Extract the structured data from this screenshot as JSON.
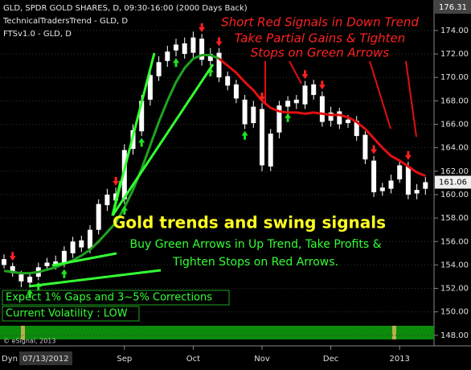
{
  "chart_data": {
    "type": "candlestick",
    "header": [
      "GLD, SPDR GOLD SHARES, D, 09:30-16:00 (2000 Days Back)",
      "TechnicalTradersTrend - GLD, D",
      "FTSv1.0 - GLD, D"
    ],
    "top_price": 176.31,
    "last_price": 161.06,
    "copyright": "© eSignal, 2013",
    "mode": "Dyn",
    "start_date": "07/13/2012",
    "annotations_red": [
      "Short Red Signals in Down Trend",
      "Take Partial Gains & Tighten",
      "Stops on Green Arrows"
    ],
    "headline": "Gold trends and swing signals",
    "annotations_green": [
      "Buy Green Arrows in Up Trend, Take Profits &",
      "Tighten Stops on Red  Arrows."
    ],
    "boxes": [
      "Expect 1% Gaps and 3~5% Corrections",
      "Current Volatility : LOW"
    ],
    "categories": [
      null,
      null,
      null,
      null,
      null,
      null,
      null,
      null,
      null,
      null,
      null,
      null,
      null,
      null,
      "Sep",
      null,
      null,
      null,
      null,
      null,
      null,
      null,
      "Oct",
      null,
      null,
      null,
      null,
      null,
      null,
      null,
      "Nov",
      null,
      null,
      null,
      null,
      null,
      null,
      null,
      "Dec",
      null,
      null,
      null,
      null,
      null,
      null,
      null,
      "2013",
      null,
      null,
      null
    ],
    "open": [
      154.5,
      153.9,
      153.2,
      152.5,
      153.0,
      153.9,
      154.3,
      154.1,
      155.0,
      156.1,
      155.4,
      157.0,
      159.1,
      160.1,
      159.6,
      163.9,
      165.4,
      168.1,
      170.1,
      171.4,
      172.3,
      172.9,
      172.1,
      173.3,
      171.4,
      172.1,
      170.1,
      169.4,
      168.1,
      166.1,
      167.3,
      162.4,
      165.3,
      167.5,
      168.1,
      167.7,
      169.4,
      168.4,
      166.3,
      167.1,
      166.1,
      166.3,
      165.1,
      162.9,
      160.3,
      160.5,
      161.3,
      162.4,
      160.1,
      160.5
    ],
    "high": [
      154.9,
      154.2,
      153.5,
      153.4,
      154.2,
      154.6,
      154.8,
      155.6,
      156.4,
      156.5,
      157.4,
      159.6,
      160.5,
      160.6,
      164.3,
      166.0,
      168.5,
      170.6,
      171.8,
      172.7,
      173.3,
      173.4,
      173.9,
      173.7,
      172.5,
      172.5,
      170.5,
      169.8,
      168.5,
      168.0,
      167.8,
      165.6,
      168.0,
      168.4,
      168.5,
      169.7,
      169.8,
      168.8,
      167.5,
      167.4,
      166.8,
      166.7,
      165.4,
      163.3,
      161.0,
      161.7,
      162.9,
      162.8,
      160.9,
      161.5
    ],
    "low": [
      153.7,
      153.0,
      152.1,
      152.1,
      152.7,
      153.5,
      153.6,
      153.8,
      154.6,
      155.1,
      155.0,
      156.6,
      158.6,
      159.0,
      159.2,
      163.4,
      165.0,
      167.6,
      169.7,
      170.9,
      171.8,
      171.6,
      171.7,
      171.0,
      171.0,
      169.6,
      168.9,
      167.8,
      165.6,
      165.7,
      162.0,
      162.0,
      164.8,
      167.1,
      167.3,
      167.3,
      168.1,
      165.8,
      165.8,
      165.6,
      165.7,
      164.6,
      162.6,
      159.8,
      159.9,
      160.1,
      161.0,
      159.6,
      159.6,
      160.0
    ],
    "close": [
      154.0,
      153.3,
      152.6,
      153.0,
      153.8,
      154.2,
      154.0,
      155.2,
      156.0,
      155.5,
      157.0,
      159.2,
      160.0,
      159.5,
      163.8,
      165.5,
      168.0,
      170.2,
      171.3,
      172.2,
      172.8,
      172.0,
      173.4,
      171.5,
      172.0,
      170.0,
      169.3,
      168.2,
      166.0,
      167.5,
      162.5,
      165.2,
      167.6,
      168.0,
      167.8,
      169.3,
      168.5,
      166.2,
      167.0,
      166.0,
      166.4,
      165.0,
      163.0,
      160.2,
      160.6,
      161.2,
      162.5,
      160.0,
      160.4,
      161.06
    ],
    "candle_color": "#ffffff",
    "trends": [
      {
        "color": "#1fa31f",
        "values": [
          153.5,
          153.4,
          153.3,
          153.3,
          153.4,
          153.6,
          153.8,
          154.1,
          154.4,
          154.8,
          155.3,
          156.0,
          156.8,
          157.6,
          158.9,
          160.4,
          162.2,
          164.2,
          166.2,
          168.0,
          169.6,
          170.8,
          171.6,
          171.9,
          171.9,
          171.6,
          null,
          null,
          null,
          null,
          null,
          null,
          null,
          null,
          null,
          null,
          null,
          null,
          null,
          null,
          null,
          null,
          null,
          null,
          null,
          null,
          null,
          null,
          null,
          null
        ]
      },
      {
        "color": "#e01010",
        "values": [
          null,
          null,
          null,
          null,
          null,
          null,
          null,
          null,
          null,
          null,
          null,
          null,
          null,
          null,
          null,
          null,
          null,
          null,
          null,
          null,
          null,
          null,
          null,
          null,
          null,
          171.6,
          171.0,
          170.4,
          169.6,
          168.9,
          168.0,
          167.4,
          167.1,
          167.0,
          167.0,
          166.9,
          167.0,
          166.9,
          166.8,
          166.8,
          166.6,
          166.2,
          165.6,
          164.8,
          164.0,
          163.3,
          162.9,
          162.4,
          161.9,
          161.6
        ]
      }
    ],
    "buy_arrows": {
      "color": "#22e022",
      "values": [
        null,
        null,
        null,
        151.6,
        152.2,
        null,
        null,
        153.3,
        null,
        null,
        null,
        null,
        null,
        null,
        158.7,
        null,
        164.5,
        null,
        null,
        null,
        171.3,
        null,
        null,
        null,
        170.5,
        null,
        null,
        null,
        165.1,
        null,
        null,
        null,
        null,
        166.6,
        null,
        null,
        null,
        null,
        null,
        null,
        null,
        null,
        null,
        null,
        null,
        null,
        null,
        null,
        null,
        null
      ]
    },
    "sell_arrows": {
      "color": "#ff2020",
      "values": [
        null,
        154.7,
        null,
        null,
        null,
        null,
        null,
        null,
        null,
        null,
        null,
        null,
        null,
        161.1,
        null,
        null,
        null,
        null,
        null,
        null,
        null,
        null,
        null,
        174.2,
        null,
        173.0,
        null,
        null,
        null,
        null,
        168.3,
        null,
        null,
        null,
        null,
        170.2,
        null,
        169.3,
        null,
        null,
        null,
        null,
        null,
        163.8,
        null,
        null,
        null,
        163.3,
        null,
        null
      ]
    },
    "ylim": [
      147.1,
      176.6
    ],
    "yticks": [
      {
        "value": 148,
        "label": "148.00"
      },
      {
        "value": 150,
        "label": "150.00"
      },
      {
        "value": 152,
        "label": "152.00"
      },
      {
        "value": 154,
        "label": "154.00"
      },
      {
        "value": 156,
        "label": "156.00"
      },
      {
        "value": 158,
        "label": "158.00"
      },
      {
        "value": 160,
        "label": "160.00"
      },
      {
        "value": 162,
        "label": "162.00"
      },
      {
        "value": 164,
        "label": "164.00"
      },
      {
        "value": 166,
        "label": "166.00"
      },
      {
        "value": 168,
        "label": "168.00"
      },
      {
        "value": 170,
        "label": "170.00"
      },
      {
        "value": 172,
        "label": "172.00"
      },
      {
        "value": 174,
        "label": "174.00"
      }
    ],
    "grid": true
  }
}
